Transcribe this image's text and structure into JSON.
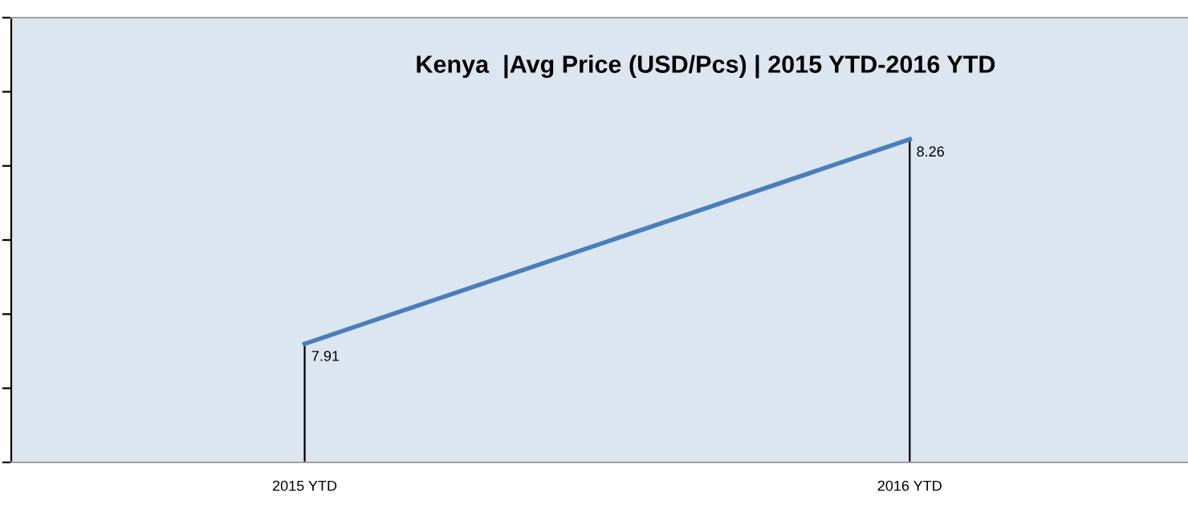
{
  "chart_data": {
    "type": "line",
    "title": "Kenya  |Avg Price (USD/Pcs) | 2015 YTD-2016 YTD",
    "categories": [
      "2015 YTD",
      "2016 YTD"
    ],
    "series": [
      {
        "color": "#4a7ebb",
        "values": [
          7.91,
          8.26
        ]
      }
    ],
    "data_labels": true,
    "legend": false,
    "marker": "none",
    "line_style": "solid"
  }
}
